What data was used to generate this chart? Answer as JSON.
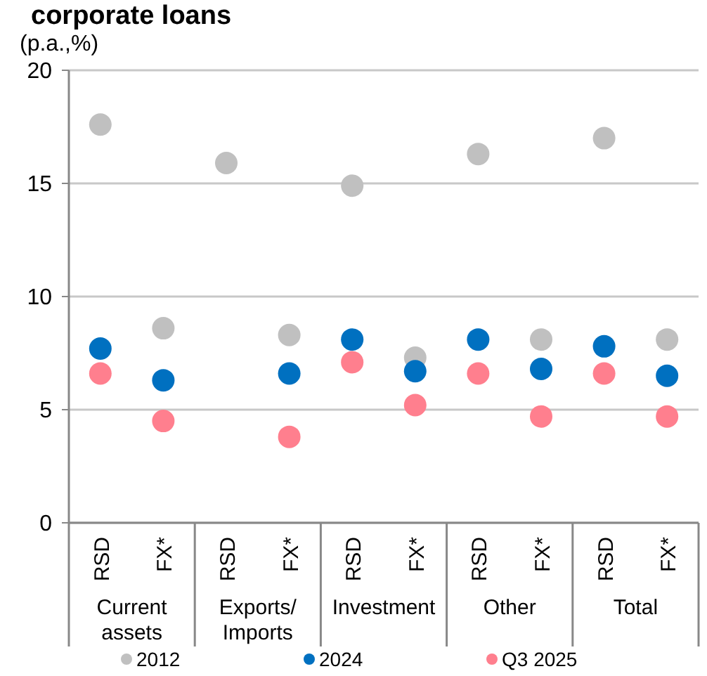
{
  "chart_data": {
    "type": "scatter",
    "title": "corporate loans",
    "ylabel": "(p.a.,%)",
    "categories": [
      "RSD",
      "FX*",
      "RSD",
      "FX*",
      "RSD",
      "FX*",
      "RSD",
      "FX*",
      "RSD",
      "FX*"
    ],
    "annotations": [
      "Current assets",
      "Exports/ Imports",
      "Investment",
      "Other",
      "Total"
    ],
    "series": [
      {
        "name": "2012",
        "color": "#c0c0c0",
        "values": [
          17.6,
          8.6,
          15.9,
          8.3,
          14.9,
          7.3,
          16.3,
          8.1,
          17.0,
          8.1
        ]
      },
      {
        "name": "2024",
        "color": "#0070c0",
        "values": [
          7.7,
          6.3,
          null,
          6.6,
          8.1,
          6.7,
          8.1,
          6.8,
          7.8,
          6.5
        ]
      },
      {
        "name": "Q3 2025",
        "color": "#ff7f8e",
        "values": [
          6.6,
          4.5,
          null,
          3.8,
          7.1,
          5.2,
          6.6,
          4.7,
          6.6,
          4.7
        ]
      }
    ],
    "ylim": [
      0,
      20
    ],
    "yticks": [
      0,
      5,
      10,
      15,
      20
    ],
    "grid": "y",
    "legend": "bottom",
    "marker": "circle"
  }
}
